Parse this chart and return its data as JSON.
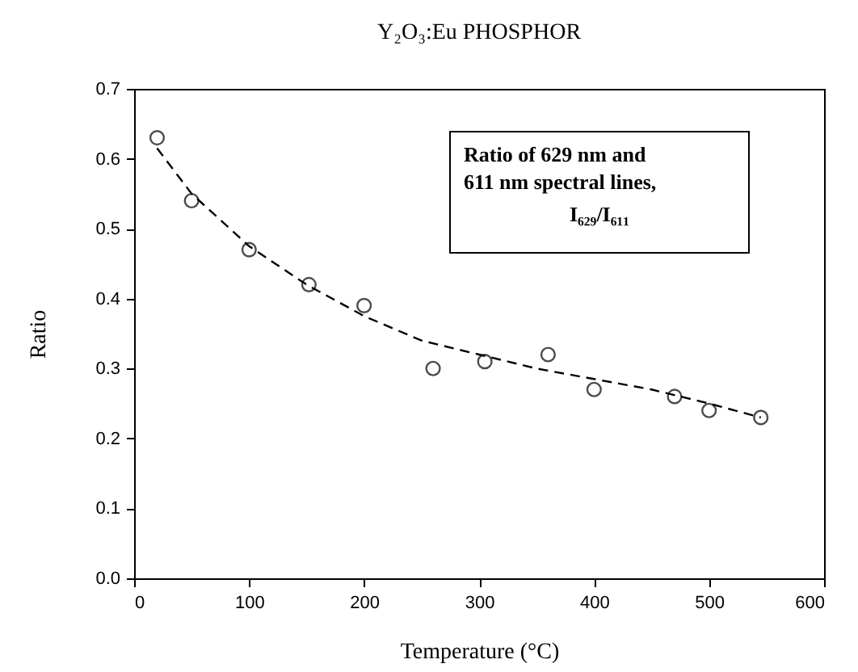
{
  "chart_data": {
    "type": "scatter",
    "title": "Y₂O₃:Eu PHOSPHOR",
    "xlabel": "Temperature (°C)",
    "ylabel": "Ratio",
    "annotations": [
      "Ratio of 629 nm and\n611 nm spectral lines,\nI₆₂₉/I₆₁₁"
    ],
    "xlim": [
      0,
      600
    ],
    "xticks": [
      0,
      100,
      200,
      300,
      400,
      500,
      600
    ],
    "ylim": [
      0,
      0.7
    ],
    "yticks": [
      {
        "value": 0,
        "label": "0.0"
      },
      0.1,
      0.2,
      0.3,
      0.4,
      0.5,
      0.6,
      0.7
    ],
    "grid": false,
    "series": [
      {
        "marker": "circle",
        "color": "#000000",
        "x": [
          20,
          50,
          100,
          152,
          200,
          260,
          305,
          360,
          400,
          470,
          500,
          545
        ],
        "values": [
          0.63,
          0.54,
          0.47,
          0.42,
          0.39,
          0.3,
          0.31,
          0.32,
          0.27,
          0.26,
          0.24,
          0.23
        ]
      },
      {
        "type": "line",
        "line_style": "dashed",
        "marker": "none",
        "color": "#000000",
        "x": [
          20,
          50,
          100,
          150,
          200,
          250,
          300,
          350,
          400,
          450,
          500,
          545
        ],
        "values": [
          0.615,
          0.55,
          0.475,
          0.42,
          0.375,
          0.34,
          0.32,
          0.3,
          0.285,
          0.27,
          0.25,
          0.23
        ]
      }
    ]
  }
}
